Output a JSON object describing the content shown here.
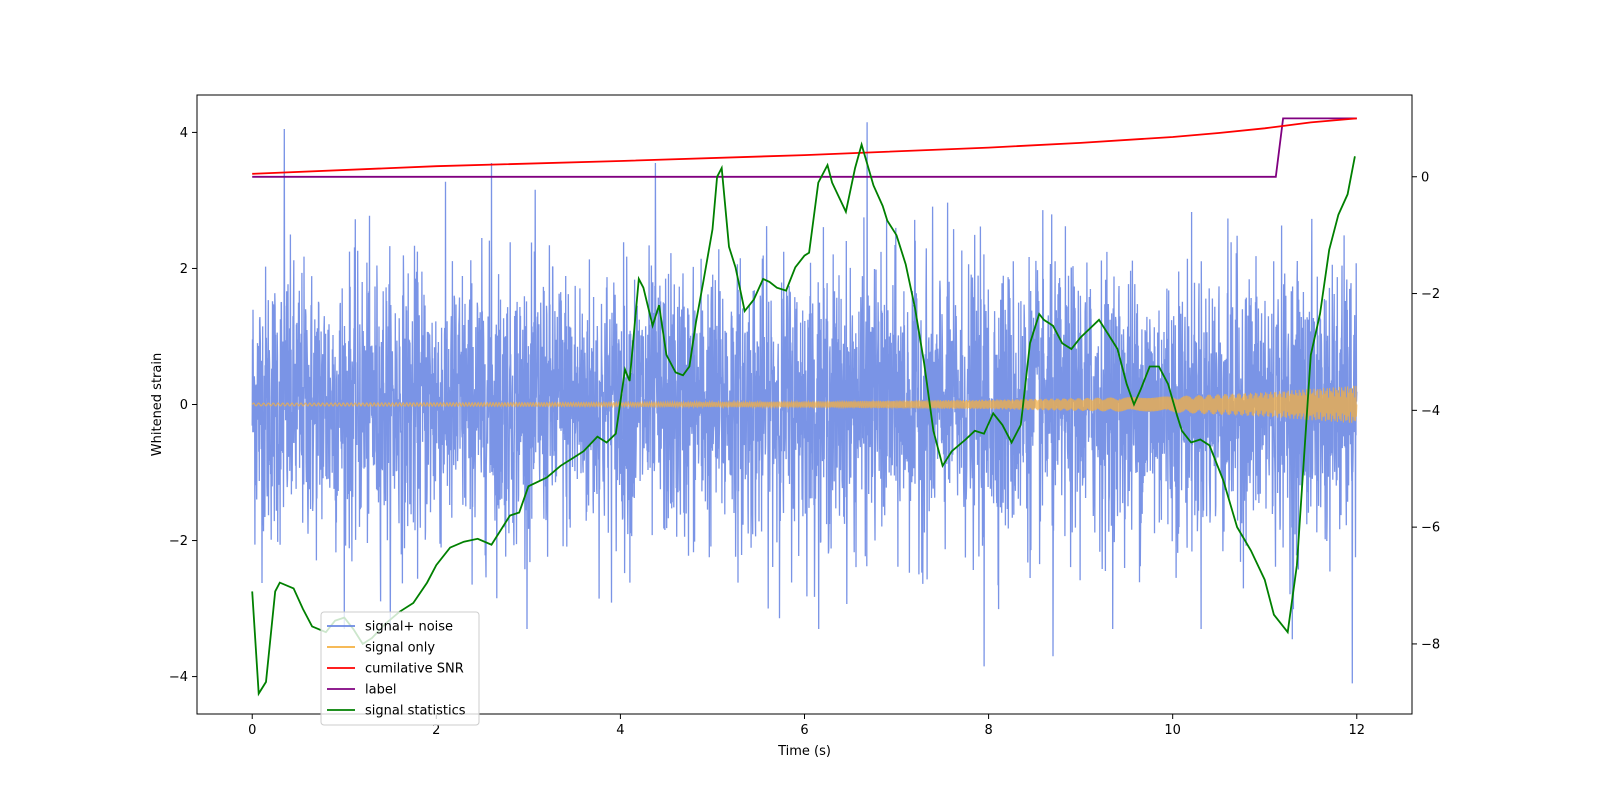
{
  "chart_data": {
    "type": "line",
    "title": "",
    "xlabel": "Time (s)",
    "ylabel": "Whitened strain",
    "y2label": "",
    "xlim": [
      -0.6,
      12.6
    ],
    "ylim": [
      -4.55,
      4.55
    ],
    "y2lim": [
      -9.2,
      1.4
    ],
    "xticks": [
      0,
      2,
      4,
      6,
      8,
      10,
      12
    ],
    "yticks": [
      -4,
      -2,
      0,
      2,
      4
    ],
    "y2ticks": [
      -8,
      -6,
      -4,
      -2,
      0
    ],
    "grid": false,
    "legend_position": "lower-left",
    "series": [
      {
        "name": "signal+ noise",
        "axis": "left",
        "color": "#6b88e3",
        "description_range": [
          -4.1,
          4.2
        ],
        "peaks_x": [
          0.35,
          2.6,
          4.38,
          6.68,
          7.95,
          8.7,
          11.3,
          11.95
        ],
        "peaks_y": [
          4.05,
          3.55,
          3.55,
          4.15,
          -3.85,
          -3.7,
          -3.45,
          -4.1
        ],
        "duration": [
          0,
          12
        ]
      },
      {
        "name": "signal only",
        "axis": "left",
        "color": "#f5b041",
        "envelope_x": [
          0,
          2,
          4,
          6,
          8,
          10,
          11,
          12
        ],
        "envelope_y": [
          0.02,
          0.025,
          0.03,
          0.045,
          0.07,
          0.12,
          0.18,
          0.28
        ]
      },
      {
        "name": "cumilative SNR",
        "axis": "right",
        "color": "#ff0000",
        "x": [
          0,
          2,
          4,
          6,
          8,
          9,
          10,
          10.5,
          11,
          11.5,
          12
        ],
        "y": [
          0.05,
          0.18,
          0.27,
          0.37,
          0.5,
          0.58,
          0.68,
          0.75,
          0.83,
          0.93,
          1.0
        ]
      },
      {
        "name": "label",
        "axis": "right",
        "color": "#800080",
        "x": [
          0,
          11.12,
          11.2,
          12
        ],
        "y": [
          0,
          0,
          1,
          1
        ]
      },
      {
        "name": "signal statistics",
        "axis": "right",
        "color": "#008000",
        "x": [
          0,
          0.07,
          0.15,
          0.25,
          0.3,
          0.45,
          0.55,
          0.65,
          0.8,
          0.9,
          1.0,
          1.1,
          1.2,
          1.3,
          1.45,
          1.6,
          1.75,
          1.9,
          2.0,
          2.15,
          2.3,
          2.45,
          2.6,
          2.8,
          2.9,
          3.0,
          3.2,
          3.35,
          3.5,
          3.6,
          3.75,
          3.85,
          3.95,
          4.05,
          4.1,
          4.2,
          4.25,
          4.35,
          4.42,
          4.5,
          4.6,
          4.68,
          4.75,
          4.82,
          4.9,
          5.0,
          5.05,
          5.1,
          5.18,
          5.25,
          5.35,
          5.45,
          5.55,
          5.62,
          5.7,
          5.8,
          5.9,
          6.0,
          6.05,
          6.15,
          6.25,
          6.3,
          6.45,
          6.55,
          6.62,
          6.75,
          6.85,
          6.9,
          7.0,
          7.1,
          7.2,
          7.3,
          7.4,
          7.5,
          7.6,
          7.75,
          7.85,
          7.95,
          8.05,
          8.15,
          8.25,
          8.35,
          8.45,
          8.55,
          8.6,
          8.7,
          8.8,
          8.9,
          9.0,
          9.1,
          9.2,
          9.3,
          9.4,
          9.5,
          9.58,
          9.65,
          9.75,
          9.85,
          9.95,
          10.05,
          10.1,
          10.2,
          10.3,
          10.4,
          10.55,
          10.7,
          10.85,
          11.0,
          11.1,
          11.25,
          11.35,
          11.5,
          11.6,
          11.7,
          11.8,
          11.9,
          11.98
        ],
        "y": [
          -7.1,
          -8.85,
          -8.65,
          -7.1,
          -6.95,
          -7.05,
          -7.4,
          -7.7,
          -7.8,
          -7.6,
          -7.55,
          -7.75,
          -8.0,
          -7.9,
          -7.65,
          -7.45,
          -7.3,
          -6.95,
          -6.65,
          -6.35,
          -6.25,
          -6.2,
          -6.3,
          -5.8,
          -5.75,
          -5.3,
          -5.15,
          -4.95,
          -4.8,
          -4.7,
          -4.45,
          -4.55,
          -4.4,
          -3.3,
          -3.5,
          -1.75,
          -1.9,
          -2.55,
          -2.2,
          -3.05,
          -3.35,
          -3.4,
          -3.25,
          -2.5,
          -1.8,
          -0.9,
          0.0,
          0.15,
          -1.2,
          -1.55,
          -2.3,
          -2.1,
          -1.75,
          -1.8,
          -1.9,
          -1.95,
          -1.55,
          -1.35,
          -1.3,
          -0.1,
          0.2,
          -0.1,
          -0.6,
          0.15,
          0.55,
          -0.15,
          -0.5,
          -0.75,
          -1.0,
          -1.5,
          -2.25,
          -3.2,
          -4.35,
          -4.95,
          -4.7,
          -4.5,
          -4.35,
          -4.4,
          -4.05,
          -4.25,
          -4.55,
          -4.25,
          -2.85,
          -2.35,
          -2.45,
          -2.55,
          -2.85,
          -2.95,
          -2.75,
          -2.6,
          -2.45,
          -2.7,
          -2.95,
          -3.55,
          -3.9,
          -3.65,
          -3.25,
          -3.25,
          -3.55,
          -4.1,
          -4.35,
          -4.55,
          -4.5,
          -4.6,
          -5.2,
          -6.0,
          -6.4,
          -6.9,
          -7.5,
          -7.8,
          -6.65,
          -3.05,
          -2.35,
          -1.25,
          -0.65,
          -0.3,
          0.35
        ]
      }
    ]
  }
}
